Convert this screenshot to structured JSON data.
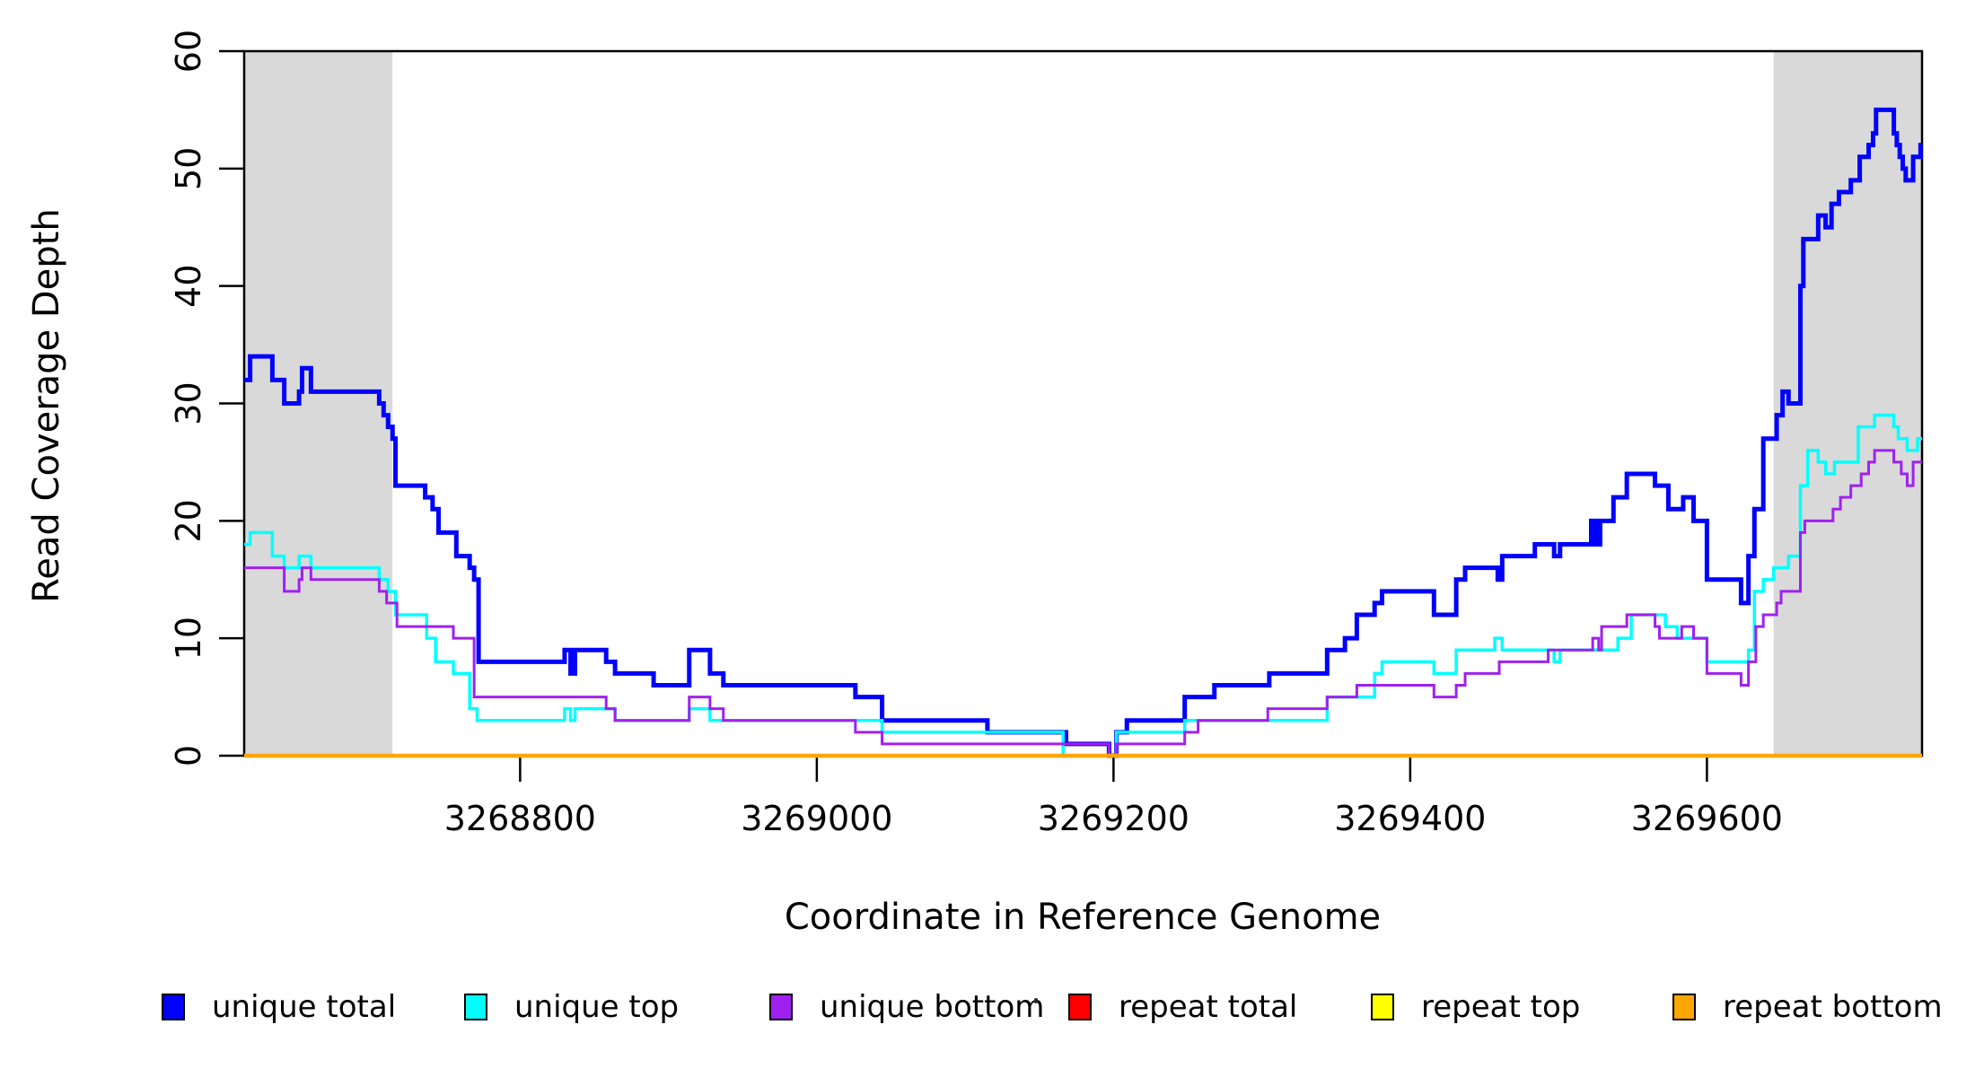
{
  "chart_data": {
    "type": "line",
    "subtype": "step-coverage-plot",
    "title": "",
    "xlabel": "Coordinate in Reference Genome",
    "ylabel": "Read Coverage Depth",
    "xlim": [
      3268614,
      3269745
    ],
    "ylim": [
      0,
      60
    ],
    "x_ticks": [
      3268800,
      3269000,
      3269200,
      3269400,
      3269600
    ],
    "x_tick_labels": [
      "3268800",
      "3269000",
      "3269200",
      "3269400",
      "3269600"
    ],
    "y_ticks": [
      0,
      10,
      20,
      30,
      40,
      50,
      60
    ],
    "y_tick_labels": [
      "0",
      "10",
      "20",
      "30",
      "40",
      "50",
      "60"
    ],
    "grid": false,
    "legend_position": "bottom",
    "shade_color": "#D9D9D9",
    "shaded_regions": [
      {
        "x1": 3268614,
        "x2": 3268714
      },
      {
        "x1": 3269645,
        "x2": 3269745
      }
    ],
    "legend": [
      {
        "label": "unique total",
        "color": "#0000FF"
      },
      {
        "label": "unique top",
        "color": "#00FFFF"
      },
      {
        "label": "unique bottom",
        "color": "#A020F0"
      },
      {
        "label": "repeat total",
        "color": "#FF0000"
      },
      {
        "label": "repeat top",
        "color": "#FFFF00"
      },
      {
        "label": "repeat bottom",
        "color": "#FFA500"
      }
    ],
    "series": [
      {
        "name": "unique total",
        "color": "#0000FF",
        "width": 5,
        "points": [
          [
            3268614,
            32
          ],
          [
            3268618,
            34
          ],
          [
            3268633,
            32
          ],
          [
            3268641,
            30
          ],
          [
            3268651,
            31
          ],
          [
            3268653,
            33
          ],
          [
            3268659,
            31
          ],
          [
            3268705,
            30
          ],
          [
            3268708,
            29
          ],
          [
            3268711,
            28
          ],
          [
            3268714,
            27
          ],
          [
            3268716,
            23
          ],
          [
            3268736,
            22
          ],
          [
            3268741,
            21
          ],
          [
            3268745,
            19
          ],
          [
            3268757,
            17
          ],
          [
            3268766,
            16
          ],
          [
            3268769,
            15
          ],
          [
            3268772,
            8
          ],
          [
            3268830,
            9
          ],
          [
            3268834,
            7
          ],
          [
            3268837,
            9
          ],
          [
            3268858,
            8
          ],
          [
            3268864,
            7
          ],
          [
            3268890,
            6
          ],
          [
            3268914,
            9
          ],
          [
            3268928,
            7
          ],
          [
            3268937,
            6
          ],
          [
            3269026,
            5
          ],
          [
            3269044,
            3
          ],
          [
            3269115,
            2
          ],
          [
            3269168,
            1
          ],
          [
            3269197,
            0
          ],
          [
            3269202,
            2
          ],
          [
            3269209,
            3
          ],
          [
            3269248,
            5
          ],
          [
            3269268,
            6
          ],
          [
            3269305,
            7
          ],
          [
            3269344,
            9
          ],
          [
            3269356,
            10
          ],
          [
            3269364,
            12
          ],
          [
            3269376,
            13
          ],
          [
            3269381,
            14
          ],
          [
            3269416,
            12
          ],
          [
            3269431,
            15
          ],
          [
            3269437,
            16
          ],
          [
            3269459,
            15
          ],
          [
            3269462,
            17
          ],
          [
            3269484,
            18
          ],
          [
            3269497,
            17
          ],
          [
            3269501,
            18
          ],
          [
            3269522,
            20
          ],
          [
            3269525,
            18
          ],
          [
            3269528,
            20
          ],
          [
            3269537,
            22
          ],
          [
            3269546,
            24
          ],
          [
            3269565,
            23
          ],
          [
            3269574,
            21
          ],
          [
            3269584,
            22
          ],
          [
            3269591,
            20
          ],
          [
            3269600,
            15
          ],
          [
            3269623,
            13
          ],
          [
            3269628,
            17
          ],
          [
            3269632,
            21
          ],
          [
            3269638,
            27
          ],
          [
            3269647,
            29
          ],
          [
            3269651,
            31
          ],
          [
            3269655,
            30
          ],
          [
            3269663,
            40
          ],
          [
            3269665,
            44
          ],
          [
            3269675,
            46
          ],
          [
            3269680,
            45
          ],
          [
            3269684,
            47
          ],
          [
            3269689,
            48
          ],
          [
            3269697,
            49
          ],
          [
            3269703,
            51
          ],
          [
            3269709,
            52
          ],
          [
            3269712,
            53
          ],
          [
            3269714,
            55
          ],
          [
            3269726,
            53
          ],
          [
            3269728,
            52
          ],
          [
            3269730,
            51
          ],
          [
            3269732,
            50
          ],
          [
            3269734,
            49
          ],
          [
            3269739,
            51
          ],
          [
            3269744,
            52
          ]
        ]
      },
      {
        "name": "unique top",
        "color": "#00FFFF",
        "width": 3.5,
        "points": [
          [
            3268614,
            18
          ],
          [
            3268618,
            19
          ],
          [
            3268633,
            17
          ],
          [
            3268641,
            16
          ],
          [
            3268651,
            17
          ],
          [
            3268659,
            16
          ],
          [
            3268705,
            15
          ],
          [
            3268711,
            14
          ],
          [
            3268716,
            12
          ],
          [
            3268737,
            10
          ],
          [
            3268743,
            8
          ],
          [
            3268755,
            7
          ],
          [
            3268766,
            4
          ],
          [
            3268771,
            3
          ],
          [
            3268830,
            4
          ],
          [
            3268834,
            3
          ],
          [
            3268837,
            4
          ],
          [
            3268864,
            3
          ],
          [
            3268914,
            4
          ],
          [
            3268928,
            3
          ],
          [
            3269044,
            2
          ],
          [
            3269166,
            0
          ],
          [
            3269202,
            2
          ],
          [
            3269248,
            3
          ],
          [
            3269344,
            5
          ],
          [
            3269376,
            7
          ],
          [
            3269381,
            8
          ],
          [
            3269416,
            7
          ],
          [
            3269431,
            9
          ],
          [
            3269457,
            10
          ],
          [
            3269462,
            9
          ],
          [
            3269497,
            8
          ],
          [
            3269501,
            9
          ],
          [
            3269540,
            10
          ],
          [
            3269549,
            12
          ],
          [
            3269572,
            11
          ],
          [
            3269580,
            10
          ],
          [
            3269600,
            8
          ],
          [
            3269628,
            9
          ],
          [
            3269632,
            14
          ],
          [
            3269638,
            15
          ],
          [
            3269645,
            16
          ],
          [
            3269655,
            17
          ],
          [
            3269663,
            23
          ],
          [
            3269668,
            26
          ],
          [
            3269675,
            25
          ],
          [
            3269680,
            24
          ],
          [
            3269686,
            25
          ],
          [
            3269702,
            28
          ],
          [
            3269713,
            29
          ],
          [
            3269726,
            28
          ],
          [
            3269729,
            27
          ],
          [
            3269735,
            26
          ],
          [
            3269742,
            27
          ]
        ]
      },
      {
        "name": "unique bottom",
        "color": "#A020F0",
        "width": 3,
        "points": [
          [
            3268614,
            16
          ],
          [
            3268641,
            14
          ],
          [
            3268651,
            15
          ],
          [
            3268653,
            16
          ],
          [
            3268659,
            15
          ],
          [
            3268705,
            14
          ],
          [
            3268710,
            13
          ],
          [
            3268717,
            11
          ],
          [
            3268755,
            10
          ],
          [
            3268769,
            5
          ],
          [
            3268858,
            4
          ],
          [
            3268864,
            3
          ],
          [
            3268914,
            5
          ],
          [
            3268928,
            4
          ],
          [
            3268937,
            3
          ],
          [
            3269026,
            2
          ],
          [
            3269044,
            1
          ],
          [
            3269197,
            0
          ],
          [
            3269202,
            1
          ],
          [
            3269248,
            2
          ],
          [
            3269257,
            3
          ],
          [
            3269304,
            4
          ],
          [
            3269344,
            5
          ],
          [
            3269364,
            6
          ],
          [
            3269416,
            5
          ],
          [
            3269431,
            6
          ],
          [
            3269437,
            7
          ],
          [
            3269460,
            8
          ],
          [
            3269493,
            9
          ],
          [
            3269523,
            10
          ],
          [
            3269527,
            9
          ],
          [
            3269529,
            11
          ],
          [
            3269546,
            12
          ],
          [
            3269565,
            11
          ],
          [
            3269568,
            10
          ],
          [
            3269583,
            11
          ],
          [
            3269591,
            10
          ],
          [
            3269600,
            7
          ],
          [
            3269623,
            6
          ],
          [
            3269628,
            8
          ],
          [
            3269633,
            11
          ],
          [
            3269638,
            12
          ],
          [
            3269647,
            13
          ],
          [
            3269650,
            14
          ],
          [
            3269663,
            19
          ],
          [
            3269666,
            20
          ],
          [
            3269685,
            21
          ],
          [
            3269690,
            22
          ],
          [
            3269697,
            23
          ],
          [
            3269704,
            24
          ],
          [
            3269709,
            25
          ],
          [
            3269713,
            26
          ],
          [
            3269726,
            25
          ],
          [
            3269731,
            24
          ],
          [
            3269735,
            23
          ],
          [
            3269739,
            25
          ]
        ]
      },
      {
        "name": "repeat total",
        "color": "#FF0000",
        "width": 3,
        "points": [
          [
            3268614,
            0
          ]
        ]
      },
      {
        "name": "repeat top",
        "color": "#FFFF00",
        "width": 3,
        "points": [
          [
            3268614,
            0
          ]
        ]
      },
      {
        "name": "repeat bottom",
        "color": "#FFA500",
        "width": 4.5,
        "points": [
          [
            3268614,
            0
          ]
        ]
      }
    ]
  }
}
